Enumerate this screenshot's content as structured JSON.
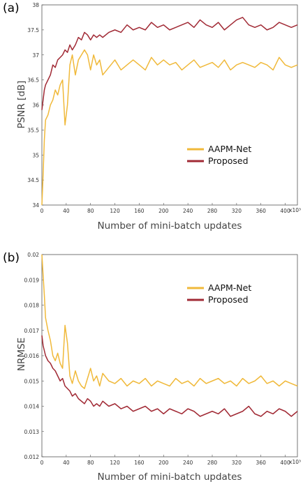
{
  "colors": {
    "aapm": "#f0b93a",
    "proposed": "#a12a35"
  },
  "chart_data": [
    {
      "panel": "(a)",
      "type": "line",
      "xlabel": "Number of mini-batch updates",
      "ylabel": "PSNR [dB]",
      "x_multiplier_label": "x10³",
      "xlim": [
        0,
        420
      ],
      "ylim": [
        34,
        38
      ],
      "xticks": [
        "0",
        "40",
        "80",
        "120",
        "160",
        "200",
        "240",
        "280",
        "320",
        "360",
        "400"
      ],
      "yticks": [
        "34",
        "34.5",
        "35",
        "35.5",
        "36",
        "36.5",
        "37",
        "37.5",
        "38"
      ],
      "legend": [
        "AAPM-Net",
        "Proposed"
      ],
      "legend_position": "center-right",
      "series": [
        {
          "name": "AAPM-Net",
          "color": "#f0b93a",
          "x": [
            0,
            2,
            4,
            6,
            10,
            14,
            18,
            22,
            26,
            30,
            34,
            38,
            42,
            46,
            50,
            55,
            60,
            65,
            70,
            75,
            80,
            85,
            90,
            95,
            100,
            110,
            120,
            130,
            140,
            150,
            160,
            170,
            180,
            190,
            200,
            210,
            220,
            230,
            240,
            250,
            260,
            270,
            280,
            290,
            300,
            310,
            320,
            330,
            340,
            350,
            360,
            370,
            380,
            390,
            400,
            410,
            420
          ],
          "y": [
            34.0,
            34.6,
            35.3,
            35.7,
            35.8,
            36.0,
            36.1,
            36.3,
            36.2,
            36.4,
            36.5,
            35.6,
            36.0,
            36.8,
            37.0,
            36.6,
            36.9,
            37.0,
            37.1,
            37.0,
            36.7,
            37.0,
            36.8,
            36.9,
            36.6,
            36.75,
            36.9,
            36.7,
            36.8,
            36.9,
            36.8,
            36.7,
            36.95,
            36.8,
            36.9,
            36.8,
            36.85,
            36.7,
            36.8,
            36.9,
            36.75,
            36.8,
            36.85,
            36.75,
            36.9,
            36.7,
            36.8,
            36.85,
            36.8,
            36.75,
            36.85,
            36.8,
            36.7,
            36.95,
            36.8,
            36.75,
            36.8
          ]
        },
        {
          "name": "Proposed",
          "color": "#a12a35",
          "x": [
            0,
            2,
            4,
            6,
            10,
            14,
            18,
            22,
            26,
            30,
            34,
            38,
            42,
            46,
            50,
            55,
            60,
            65,
            70,
            75,
            80,
            85,
            90,
            95,
            100,
            110,
            120,
            130,
            140,
            150,
            160,
            170,
            180,
            190,
            200,
            210,
            220,
            230,
            240,
            250,
            260,
            270,
            280,
            290,
            300,
            310,
            320,
            330,
            340,
            350,
            360,
            370,
            380,
            390,
            400,
            410,
            420
          ],
          "y": [
            35.9,
            36.1,
            36.3,
            36.4,
            36.5,
            36.6,
            36.8,
            36.75,
            36.9,
            36.95,
            37.0,
            37.1,
            37.05,
            37.2,
            37.1,
            37.2,
            37.35,
            37.3,
            37.45,
            37.4,
            37.3,
            37.4,
            37.35,
            37.4,
            37.35,
            37.45,
            37.5,
            37.45,
            37.6,
            37.5,
            37.55,
            37.5,
            37.65,
            37.55,
            37.6,
            37.5,
            37.55,
            37.6,
            37.65,
            37.55,
            37.7,
            37.6,
            37.55,
            37.65,
            37.5,
            37.6,
            37.7,
            37.75,
            37.6,
            37.55,
            37.6,
            37.5,
            37.55,
            37.65,
            37.6,
            37.55,
            37.6
          ]
        }
      ]
    },
    {
      "panel": "(b)",
      "type": "line",
      "xlabel": "Number of mini-batch updates",
      "ylabel": "NRMSE",
      "x_multiplier_label": "x10³",
      "xlim": [
        0,
        420
      ],
      "ylim": [
        0.012,
        0.02
      ],
      "xticks": [
        "0",
        "40",
        "80",
        "120",
        "160",
        "200",
        "240",
        "280",
        "320",
        "360",
        "400"
      ],
      "yticks": [
        "0.012",
        "0.013",
        "0.014",
        "0.015",
        "0.016",
        "0.017",
        "0.018",
        "0.019",
        "0.02"
      ],
      "legend": [
        "AAPM-Net",
        "Proposed"
      ],
      "legend_position": "top-right",
      "series": [
        {
          "name": "AAPM-Net",
          "color": "#f0b93a",
          "x": [
            0,
            2,
            4,
            6,
            10,
            14,
            18,
            22,
            26,
            30,
            34,
            38,
            42,
            46,
            50,
            55,
            60,
            65,
            70,
            75,
            80,
            85,
            90,
            95,
            100,
            110,
            120,
            130,
            140,
            150,
            160,
            170,
            180,
            190,
            200,
            210,
            220,
            230,
            240,
            250,
            260,
            270,
            280,
            290,
            300,
            310,
            320,
            330,
            340,
            350,
            360,
            370,
            380,
            390,
            400,
            410,
            420
          ],
          "y": [
            0.02,
            0.0192,
            0.0184,
            0.0175,
            0.017,
            0.0166,
            0.016,
            0.0158,
            0.0161,
            0.0157,
            0.0155,
            0.0172,
            0.0165,
            0.0152,
            0.0149,
            0.0154,
            0.015,
            0.0148,
            0.0147,
            0.0151,
            0.0155,
            0.015,
            0.0152,
            0.0148,
            0.0153,
            0.015,
            0.0149,
            0.0151,
            0.0148,
            0.015,
            0.0149,
            0.0151,
            0.0148,
            0.015,
            0.0149,
            0.0148,
            0.0151,
            0.0149,
            0.015,
            0.0148,
            0.0151,
            0.0149,
            0.015,
            0.0151,
            0.0149,
            0.015,
            0.0148,
            0.0151,
            0.0149,
            0.015,
            0.0152,
            0.0149,
            0.015,
            0.0148,
            0.015,
            0.0149,
            0.0148
          ]
        },
        {
          "name": "Proposed",
          "color": "#a12a35",
          "x": [
            0,
            2,
            4,
            6,
            10,
            14,
            18,
            22,
            26,
            30,
            34,
            38,
            42,
            46,
            50,
            55,
            60,
            65,
            70,
            75,
            80,
            85,
            90,
            95,
            100,
            110,
            120,
            130,
            140,
            150,
            160,
            170,
            180,
            190,
            200,
            210,
            220,
            230,
            240,
            250,
            260,
            270,
            280,
            290,
            300,
            310,
            320,
            330,
            340,
            350,
            360,
            370,
            380,
            390,
            400,
            410,
            420
          ],
          "y": [
            0.0168,
            0.0164,
            0.0162,
            0.016,
            0.0158,
            0.0157,
            0.0155,
            0.0154,
            0.0152,
            0.015,
            0.0151,
            0.0148,
            0.0147,
            0.0146,
            0.0144,
            0.0145,
            0.0143,
            0.0142,
            0.0141,
            0.0143,
            0.0142,
            0.014,
            0.0141,
            0.014,
            0.0142,
            0.014,
            0.0141,
            0.0139,
            0.014,
            0.0138,
            0.0139,
            0.014,
            0.0138,
            0.0139,
            0.0137,
            0.0139,
            0.0138,
            0.0137,
            0.0139,
            0.0138,
            0.0136,
            0.0137,
            0.0138,
            0.0137,
            0.0139,
            0.0136,
            0.0137,
            0.0138,
            0.014,
            0.0137,
            0.0136,
            0.0138,
            0.0137,
            0.0139,
            0.0138,
            0.0136,
            0.0138
          ]
        }
      ]
    }
  ]
}
